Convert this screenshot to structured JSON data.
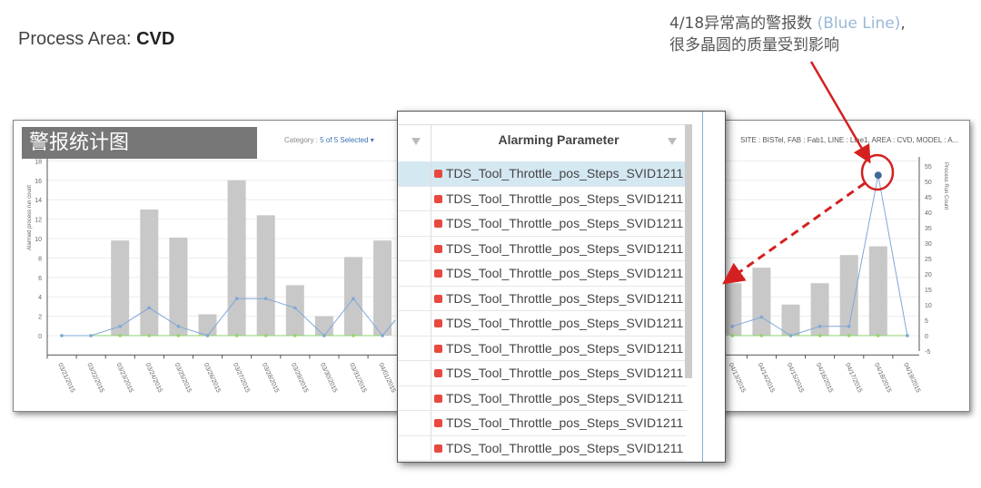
{
  "slide": {
    "process_area_label": "Process Area: ",
    "process_area_value": "CVD",
    "annotation_line1": "4/18异常高的警报数 ",
    "annotation_blue": "(Blue Line)",
    "annotation_comma": ",",
    "annotation_line2": "很多晶圆的质量受到影响",
    "badge": "警报统计图"
  },
  "chart_header": {
    "category_label": "Category :",
    "category_value": "5 of 5 Selected",
    "site_info": "SITE : BISTel, FAB : Fab1, LINE : Line1, AREA : CVD, MODEL : A..."
  },
  "chart_data": {
    "type": "bar",
    "ylabel_left": "Alarmed process run count",
    "ylabel_right": "Process Run Count",
    "ylim_left": [
      -2,
      18
    ],
    "yticks_left": [
      0,
      2,
      4,
      6,
      8,
      10,
      12,
      14,
      16,
      18
    ],
    "ylim_right": [
      -5,
      55
    ],
    "yticks_right": [
      -5,
      0,
      5,
      10,
      15,
      20,
      25,
      30,
      35,
      40,
      45,
      50,
      55
    ],
    "grid": true,
    "categories": [
      "03/21/2015",
      "03/22/2015",
      "03/23/2015",
      "03/24/2015",
      "03/25/2015",
      "03/26/2015",
      "03/27/2015",
      "03/28/2015",
      "03/29/2015",
      "03/30/2015",
      "03/31/2015",
      "04/01/2015",
      "04/13/2015",
      "04/14/2015",
      "04/15/2015",
      "04/16/2015",
      "04/17/2015",
      "04/18/2015",
      "04/19/2015"
    ],
    "series": [
      {
        "type": "bar",
        "axis": "left",
        "color": "#c8c8c8",
        "values": [
          0,
          0,
          9.8,
          13,
          10.1,
          2.2,
          16,
          12.4,
          5.2,
          2,
          8.1,
          9.8,
          5.4,
          7,
          3.2,
          5.4,
          8.3,
          9.2,
          0
        ]
      },
      {
        "type": "line",
        "axis": "right",
        "name": "Blue Line",
        "color": "#7fa8d8",
        "values": [
          0,
          0,
          3,
          9,
          3,
          0,
          12,
          12,
          9,
          0,
          12,
          0,
          3,
          6,
          0,
          3,
          3,
          52,
          0
        ]
      },
      {
        "type": "line",
        "axis": "right",
        "color": "#8fd46a",
        "values": [
          0,
          0,
          0,
          0,
          0,
          0,
          0,
          0,
          0,
          0,
          0,
          0,
          0,
          0,
          0,
          0,
          0,
          0,
          0
        ]
      }
    ],
    "highlight": {
      "category": "04/18/2015",
      "value": 52,
      "color": "#d42020"
    }
  },
  "popup": {
    "header": "Alarming Parameter",
    "rows": [
      "TDS_Tool_Throttle_pos_Steps_SVID1211",
      "TDS_Tool_Throttle_pos_Steps_SVID1211",
      "TDS_Tool_Throttle_pos_Steps_SVID1211",
      "TDS_Tool_Throttle_pos_Steps_SVID1211",
      "TDS_Tool_Throttle_pos_Steps_SVID1211",
      "TDS_Tool_Throttle_pos_Steps_SVID1211",
      "TDS_Tool_Throttle_pos_Steps_SVID1211",
      "TDS_Tool_Throttle_pos_Steps_SVID1211",
      "TDS_Tool_Throttle_pos_Steps_SVID1211",
      "TDS_Tool_Throttle_pos_Steps_SVID1211",
      "TDS_Tool_Throttle_pos_Steps_SVID1211",
      "TDS_Tool_Throttle_pos_Steps_SVID1211"
    ],
    "selected_row": 0,
    "status_color": "#e8493f"
  }
}
